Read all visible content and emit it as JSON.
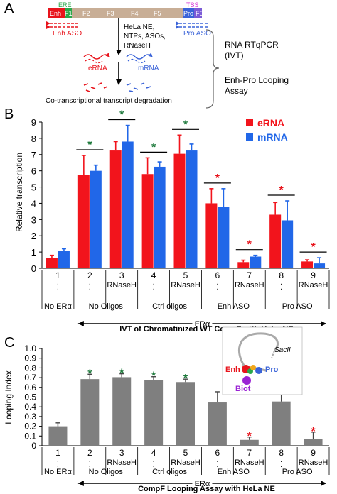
{
  "panelA": {
    "letter": "A",
    "segments": [
      "Enh",
      "F1",
      "F2",
      "F3",
      "F4",
      "F5",
      "Pro",
      "F6"
    ],
    "ere": "ERE",
    "tss": "TSS",
    "enh_aso": "Enh ASO",
    "pro_aso": "Pro ASO",
    "reaction_lines": [
      "HeLa NE,",
      "NTPs, ASOs,",
      "RNaseH"
    ],
    "erna": "eRNA",
    "mrna": "mRNA",
    "degradation": "Co-transcriptional transcript degradation",
    "assay1_lines": [
      "RNA RTqPCR",
      "(IVT)"
    ],
    "assay2_lines": [
      "Enh-Pro Looping",
      "Assay"
    ],
    "colors": {
      "enh": "#e8141c",
      "green": "#2aa84a",
      "gene": "#c8ae96",
      "pro": "#3a63d8",
      "tss": "#d62fd6",
      "aso_red": "#e8141c",
      "aso_blue": "#3a63d8"
    }
  },
  "panelB": {
    "letter": "B",
    "chart_data": {
      "type": "bar",
      "ylabel": "Relative transcription",
      "ylim": [
        0,
        9
      ],
      "yticks": [
        0,
        1,
        2,
        3,
        4,
        5,
        6,
        7,
        8,
        9
      ],
      "categories": [
        "1",
        "2",
        "3",
        "4",
        "5",
        "6",
        "7",
        "8",
        "9"
      ],
      "series": [
        {
          "name": "eRNA",
          "color": "#f2141c",
          "values": [
            0.65,
            5.75,
            7.25,
            5.8,
            7.05,
            4.0,
            0.38,
            3.3,
            0.42
          ],
          "errors": [
            0.15,
            1.2,
            0.55,
            1.0,
            1.15,
            0.9,
            0.12,
            0.75,
            0.1
          ]
        },
        {
          "name": "mRNA",
          "color": "#2167e8",
          "values": [
            1.05,
            6.0,
            7.8,
            6.25,
            7.25,
            3.8,
            0.72,
            2.95,
            0.3
          ],
          "errors": [
            0.15,
            0.35,
            1.0,
            0.3,
            0.4,
            1.1,
            0.08,
            1.2,
            0.35
          ]
        }
      ],
      "stars": [
        {
          "groups": [
            2
          ],
          "color": "#1e7a3c"
        },
        {
          "groups": [
            3
          ],
          "color": "#1e7a3c"
        },
        {
          "groups": [
            4
          ],
          "color": "#1e7a3c"
        },
        {
          "groups": [
            5
          ],
          "color": "#1e7a3c"
        },
        {
          "groups": [
            6
          ],
          "color": "#e8141c"
        },
        {
          "groups": [
            7
          ],
          "color": "#e8141c"
        },
        {
          "groups": [
            8
          ],
          "color": "#e8141c"
        },
        {
          "groups": [
            9
          ],
          "color": "#e8141c"
        }
      ],
      "group_labels": [
        {
          "text": "No ERα",
          "groups": [
            1
          ]
        },
        {
          "text": "No Oligos",
          "groups": [
            2,
            3
          ]
        },
        {
          "text": "Ctrl oligos",
          "groups": [
            4,
            5
          ]
        },
        {
          "text": "Enh ASO",
          "groups": [
            6,
            7
          ]
        },
        {
          "text": "Pro ASO",
          "groups": [
            8,
            9
          ]
        }
      ],
      "rnaseh_label": "RNaseH",
      "dot": ".",
      "bracket_label": "ERα",
      "xlabel": "IVT of Chromatinized WT CompF with HeLa NE"
    }
  },
  "panelC": {
    "letter": "C",
    "chart_data": {
      "type": "bar",
      "ylabel": "Looping Index",
      "ylim": [
        0,
        1.0
      ],
      "yticks": [
        "0",
        "0.1",
        "0.2",
        "0.3",
        "0.4",
        "0.5",
        "0.6",
        "0.7",
        "0.8",
        "0.9",
        "1.0"
      ],
      "categories": [
        "1",
        "2",
        "3",
        "4",
        "5",
        "6",
        "7",
        "8",
        "9"
      ],
      "series": [
        {
          "color": "#7f7f7f",
          "values": [
            0.2,
            0.685,
            0.705,
            0.675,
            0.655,
            0.445,
            0.06,
            0.455,
            0.07
          ],
          "errors": [
            0.035,
            0.05,
            0.035,
            0.035,
            0.03,
            0.11,
            0.03,
            0.09,
            0.07
          ]
        }
      ],
      "stars": [
        {
          "group": 2,
          "color": "#1e7a3c"
        },
        {
          "group": 3,
          "color": "#1e7a3c"
        },
        {
          "group": 4,
          "color": "#1e7a3c"
        },
        {
          "group": 5,
          "color": "#1e7a3c"
        },
        {
          "group": 7,
          "color": "#e8141c"
        },
        {
          "group": 9,
          "color": "#e8141c"
        }
      ],
      "group_labels": [
        {
          "text": "No ERα",
          "groups": [
            1
          ]
        },
        {
          "text": "No Oligos",
          "groups": [
            2,
            3
          ]
        },
        {
          "text": "Ctrl oligos",
          "groups": [
            4,
            5
          ]
        },
        {
          "text": "Enh ASO",
          "groups": [
            6,
            7
          ]
        },
        {
          "text": "Pro ASO",
          "groups": [
            8,
            9
          ]
        }
      ],
      "rnaseh_label": "RNaseH",
      "dot": ".",
      "bracket_label": "ERα",
      "xlabel": "CompF Looping Assay with HeLa NE",
      "inset": {
        "sac": "SacII",
        "enh": "Enh",
        "pro": "Pro",
        "biot": "Biot"
      }
    }
  }
}
